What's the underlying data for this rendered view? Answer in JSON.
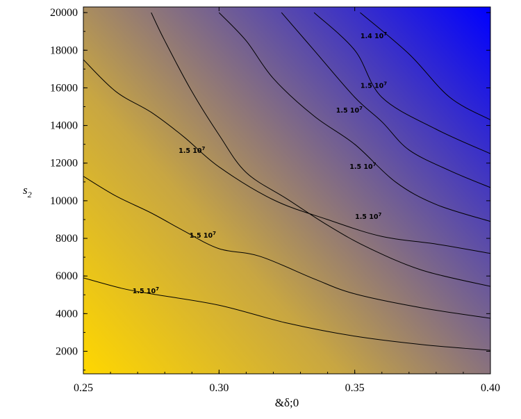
{
  "chart_data": {
    "type": "heatmap",
    "title": "",
    "xlabel": "&δ;0",
    "ylabel": "s",
    "ylabel_subscript": "2",
    "xlim": [
      0.25,
      0.4
    ],
    "ylim": [
      800,
      20300
    ],
    "x_ticks": [
      "0.25",
      "0.30",
      "0.35",
      "0.40"
    ],
    "x_tick_values": [
      0.25,
      0.3,
      0.35,
      0.4
    ],
    "y_ticks": [
      "2000",
      "4000",
      "6000",
      "8000",
      "10000",
      "12000",
      "14000",
      "16000",
      "18000",
      "20000"
    ],
    "y_tick_values": [
      2000,
      4000,
      6000,
      8000,
      10000,
      12000,
      14000,
      16000,
      18000,
      20000
    ],
    "colors": {
      "low": "#ffd700",
      "high": "#0000ff"
    },
    "grid": false,
    "contours": [
      {
        "points": [
          [
            0.25,
            5900
          ],
          [
            0.264,
            5350
          ],
          [
            0.275,
            5050
          ],
          [
            0.3,
            4450
          ],
          [
            0.325,
            3500
          ],
          [
            0.35,
            2800
          ],
          [
            0.375,
            2350
          ],
          [
            0.4,
            2050
          ]
        ]
      },
      {
        "points": [
          [
            0.25,
            11300
          ],
          [
            0.262,
            10250
          ],
          [
            0.275,
            9350
          ],
          [
            0.287,
            8400
          ],
          [
            0.3,
            7450
          ],
          [
            0.315,
            7050
          ],
          [
            0.335,
            5850
          ],
          [
            0.35,
            5050
          ],
          [
            0.375,
            4300
          ],
          [
            0.4,
            3750
          ]
        ]
      },
      {
        "points": [
          [
            0.275,
            20000
          ],
          [
            0.28,
            18500
          ],
          [
            0.29,
            15800
          ],
          [
            0.3,
            13500
          ],
          [
            0.31,
            11500
          ],
          [
            0.325,
            10100
          ],
          [
            0.34,
            8700
          ],
          [
            0.355,
            7500
          ],
          [
            0.375,
            6300
          ],
          [
            0.4,
            5450
          ]
        ]
      },
      {
        "points": [
          [
            0.25,
            17500
          ],
          [
            0.262,
            15800
          ],
          [
            0.275,
            14700
          ],
          [
            0.287,
            13400
          ],
          [
            0.3,
            11800
          ],
          [
            0.32,
            10050
          ],
          [
            0.34,
            9000
          ],
          [
            0.36,
            8100
          ],
          [
            0.38,
            7700
          ],
          [
            0.4,
            7200
          ]
        ]
      },
      {
        "points": [
          [
            0.3,
            20000
          ],
          [
            0.31,
            18500
          ],
          [
            0.32,
            16500
          ],
          [
            0.335,
            14500
          ],
          [
            0.35,
            13000
          ],
          [
            0.365,
            11000
          ],
          [
            0.38,
            9800
          ],
          [
            0.4,
            8900
          ]
        ]
      },
      {
        "points": [
          [
            0.323,
            20000
          ],
          [
            0.335,
            18000
          ],
          [
            0.35,
            15500
          ],
          [
            0.36,
            14200
          ],
          [
            0.37,
            12700
          ],
          [
            0.385,
            11600
          ],
          [
            0.4,
            10700
          ]
        ]
      },
      {
        "points": [
          [
            0.335,
            20000
          ],
          [
            0.35,
            18000
          ],
          [
            0.36,
            15500
          ],
          [
            0.38,
            13800
          ],
          [
            0.4,
            12500
          ]
        ]
      },
      {
        "points": [
          [
            0.352,
            20000
          ],
          [
            0.37,
            17800
          ],
          [
            0.385,
            15500
          ],
          [
            0.4,
            14300
          ]
        ]
      }
    ],
    "contour_labels": [
      {
        "text": "1.5 10",
        "exp": "7",
        "x": 0.273,
        "y": 5200
      },
      {
        "text": "1.5 10",
        "exp": "7",
        "x": 0.294,
        "y": 8150
      },
      {
        "text": "1.5 10",
        "exp": "7",
        "x": 0.29,
        "y": 12650
      },
      {
        "text": "1.5 10",
        "exp": "7",
        "x": 0.355,
        "y": 9150
      },
      {
        "text": "1.5 10",
        "exp": "7",
        "x": 0.353,
        "y": 11800
      },
      {
        "text": "1.5 10",
        "exp": "7",
        "x": 0.348,
        "y": 14800
      },
      {
        "text": "1.5 10",
        "exp": "7",
        "x": 0.357,
        "y": 16100
      },
      {
        "text": "1.4 10",
        "exp": "7",
        "x": 0.357,
        "y": 18750
      }
    ]
  }
}
